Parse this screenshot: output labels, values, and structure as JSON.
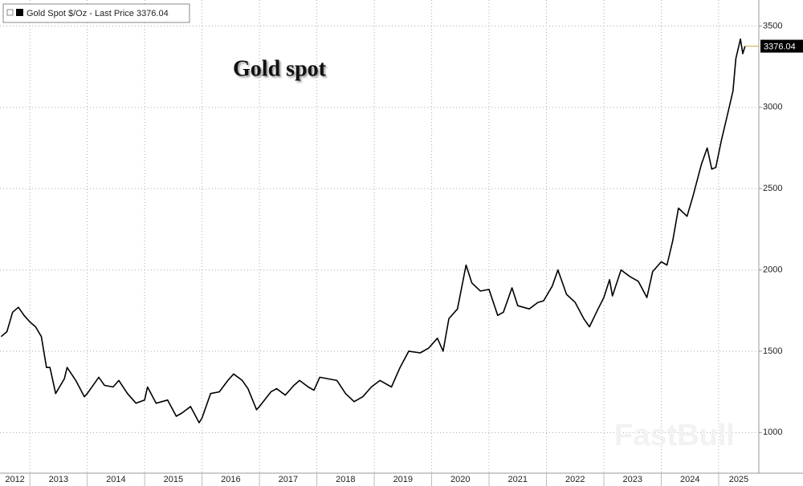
{
  "chart_data": {
    "type": "line",
    "title": "Gold spot",
    "watermark": "FastBull",
    "series": [
      {
        "name": "Gold Spot $/Oz - Last Price 3376.04",
        "color": "#000000",
        "x": [
          2012.5,
          2012.6,
          2012.7,
          2012.8,
          2012.9,
          2013.0,
          2013.1,
          2013.2,
          2013.29,
          2013.35,
          2013.45,
          2013.6,
          2013.65,
          2013.8,
          2013.95,
          2014.0,
          2014.2,
          2014.3,
          2014.45,
          2014.55,
          2014.7,
          2014.85,
          2015.0,
          2015.05,
          2015.2,
          2015.4,
          2015.55,
          2015.65,
          2015.8,
          2015.95,
          2016.0,
          2016.15,
          2016.3,
          2016.45,
          2016.55,
          2016.7,
          2016.8,
          2016.95,
          2017.0,
          2017.2,
          2017.3,
          2017.45,
          2017.6,
          2017.7,
          2017.85,
          2017.95,
          2018.05,
          2018.2,
          2018.35,
          2018.5,
          2018.65,
          2018.8,
          2018.95,
          2019.1,
          2019.3,
          2019.45,
          2019.6,
          2019.8,
          2019.95,
          2020.1,
          2020.2,
          2020.3,
          2020.45,
          2020.6,
          2020.7,
          2020.85,
          2021.0,
          2021.15,
          2021.25,
          2021.4,
          2021.5,
          2021.7,
          2021.85,
          2021.95,
          2022.1,
          2022.2,
          2022.35,
          2022.5,
          2022.65,
          2022.75,
          2022.9,
          2023.0,
          2023.1,
          2023.15,
          2023.3,
          2023.45,
          2023.6,
          2023.75,
          2023.85,
          2024.0,
          2024.1,
          2024.2,
          2024.3,
          2024.45,
          2024.55,
          2024.7,
          2024.8,
          2024.88,
          2024.95,
          2025.05,
          2025.15,
          2025.25,
          2025.3,
          2025.38,
          2025.42,
          2025.46
        ],
        "values": [
          1590,
          1620,
          1740,
          1770,
          1720,
          1680,
          1650,
          1590,
          1400,
          1400,
          1240,
          1330,
          1400,
          1320,
          1220,
          1240,
          1340,
          1290,
          1280,
          1320,
          1240,
          1180,
          1200,
          1280,
          1180,
          1200,
          1100,
          1120,
          1160,
          1060,
          1090,
          1240,
          1250,
          1320,
          1360,
          1320,
          1270,
          1140,
          1160,
          1250,
          1270,
          1230,
          1290,
          1320,
          1280,
          1260,
          1340,
          1330,
          1320,
          1240,
          1190,
          1220,
          1280,
          1320,
          1280,
          1400,
          1500,
          1490,
          1520,
          1580,
          1500,
          1700,
          1760,
          2030,
          1920,
          1870,
          1880,
          1720,
          1740,
          1890,
          1780,
          1760,
          1800,
          1810,
          1900,
          2000,
          1850,
          1800,
          1700,
          1650,
          1760,
          1830,
          1940,
          1840,
          2000,
          1960,
          1930,
          1830,
          1990,
          2050,
          2030,
          2180,
          2380,
          2330,
          2450,
          2650,
          2750,
          2620,
          2630,
          2800,
          2950,
          3100,
          3300,
          3420,
          3330,
          3376.04
        ]
      }
    ],
    "last_value": 3376.04,
    "xlim": [
      2012.48,
      2025.7
    ],
    "xticks": [
      2012,
      2013,
      2014,
      2015,
      2016,
      2017,
      2018,
      2019,
      2020,
      2021,
      2022,
      2023,
      2024,
      2025
    ],
    "ylim": [
      750,
      3660
    ],
    "yticks": [
      1000,
      1500,
      2000,
      2500,
      3000,
      3500
    ],
    "grid": true
  }
}
